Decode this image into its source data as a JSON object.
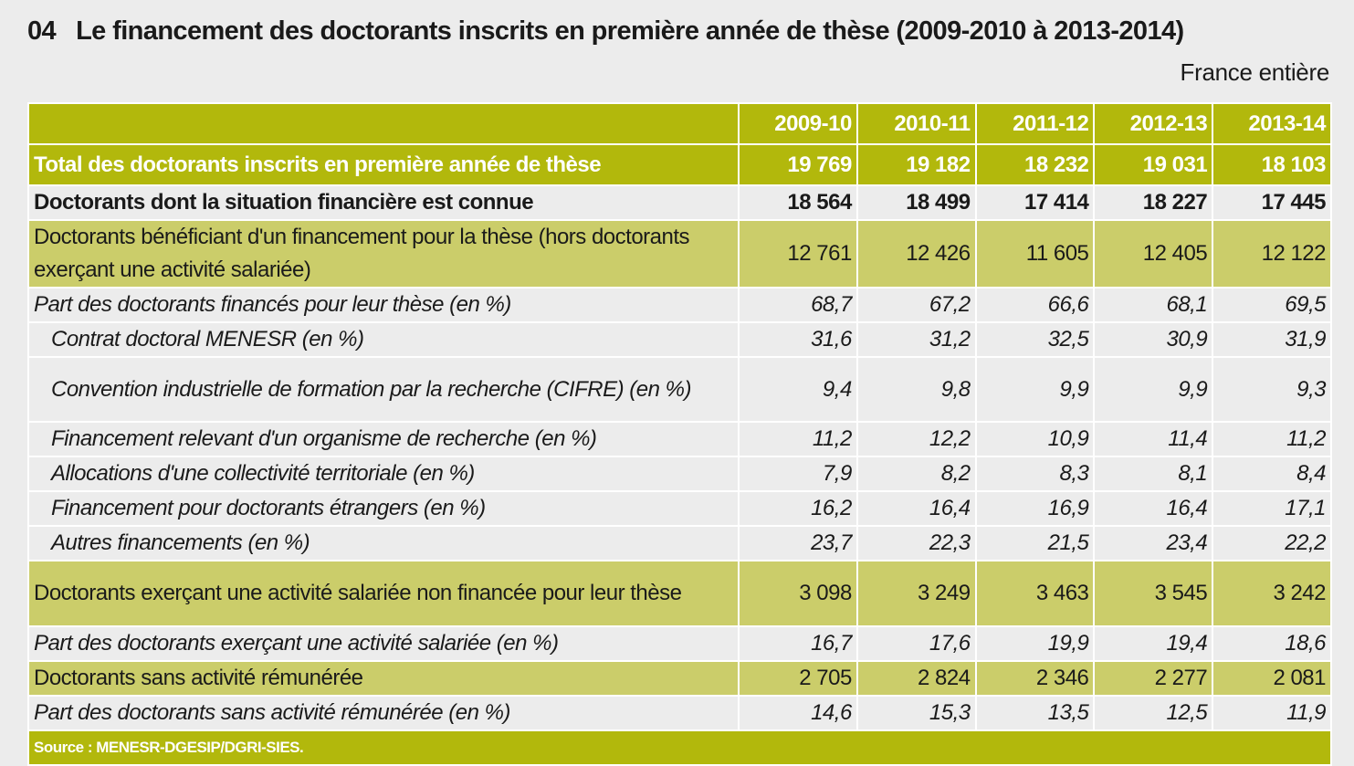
{
  "title": {
    "number": "04",
    "text": "Le financement des doctorants inscrits en première année de thèse (2009-2010 à 2013-2014)"
  },
  "subtitle": "France entière",
  "table": {
    "columns": [
      "2009-10",
      "2010-11",
      "2011-12",
      "2012-13",
      "2013-14"
    ],
    "rows": [
      {
        "label": "Total des doctorants inscrits en première année de thèse",
        "style": "dark",
        "values": [
          "19 769",
          "19 182",
          "18 232",
          "19 031",
          "18 103"
        ]
      },
      {
        "label": "Doctorants dont la situation financière est connue",
        "style": "plain bold",
        "values": [
          "18 564",
          "18 499",
          "17 414",
          "18 227",
          "17 445"
        ]
      },
      {
        "label": "Doctorants bénéficiant d'un financement pour la thèse (hors doctorants exerçant une activité salariée)",
        "style": "light",
        "values": [
          "12 761",
          "12 426",
          "11 605",
          "12 405",
          "12 122"
        ]
      },
      {
        "label": "Part des doctorants financés pour leur thèse (en %)",
        "style": "plain ital",
        "values": [
          "68,7",
          "67,2",
          "66,6",
          "68,1",
          "69,5"
        ]
      },
      {
        "label": "Contrat doctoral MENESR (en %)",
        "style": "plain ital ind",
        "values": [
          "31,6",
          "31,2",
          "32,5",
          "30,9",
          "31,9"
        ]
      },
      {
        "label": "Convention industrielle de formation par la recherche (CIFRE) (en %)",
        "style": "plain ital ind",
        "values": [
          "9,4",
          "9,8",
          "9,9",
          "9,9",
          "9,3"
        ]
      },
      {
        "label": "Financement relevant d'un organisme de recherche  (en %)",
        "style": "plain ital ind",
        "values": [
          "11,2",
          "12,2",
          "10,9",
          "11,4",
          "11,2"
        ]
      },
      {
        "label": "Allocations d'une collectivité territoriale  (en %)",
        "style": "plain ital ind",
        "values": [
          "7,9",
          "8,2",
          "8,3",
          "8,1",
          "8,4"
        ]
      },
      {
        "label": "Financement pour doctorants étrangers  (en %)",
        "style": "plain ital ind",
        "values": [
          "16,2",
          "16,4",
          "16,9",
          "16,4",
          "17,1"
        ]
      },
      {
        "label": "Autres financements  (en %)",
        "style": "plain ital ind",
        "values": [
          "23,7",
          "22,3",
          "21,5",
          "23,4",
          "22,2"
        ]
      },
      {
        "label": "Doctorants exerçant une activité salariée non financée pour leur thèse",
        "style": "light",
        "values": [
          "3 098",
          "3 249",
          "3 463",
          "3 545",
          "3 242"
        ]
      },
      {
        "label": "Part des doctorants exerçant une activité salariée (en %)",
        "style": "plain ital",
        "values": [
          "16,7",
          "17,6",
          "19,9",
          "19,4",
          "18,6"
        ]
      },
      {
        "label": "Doctorants sans activité rémunérée",
        "style": "light",
        "values": [
          "2 705",
          "2 824",
          "2 346",
          "2 277",
          "2 081"
        ]
      },
      {
        "label": "Part des doctorants sans activité rémunérée (en %)",
        "style": "plain ital",
        "values": [
          "14,6",
          "15,3",
          "13,5",
          "12,5",
          "11,9"
        ]
      }
    ],
    "source": "Source : MENESR-DGESIP/DGRI-SIES."
  }
}
